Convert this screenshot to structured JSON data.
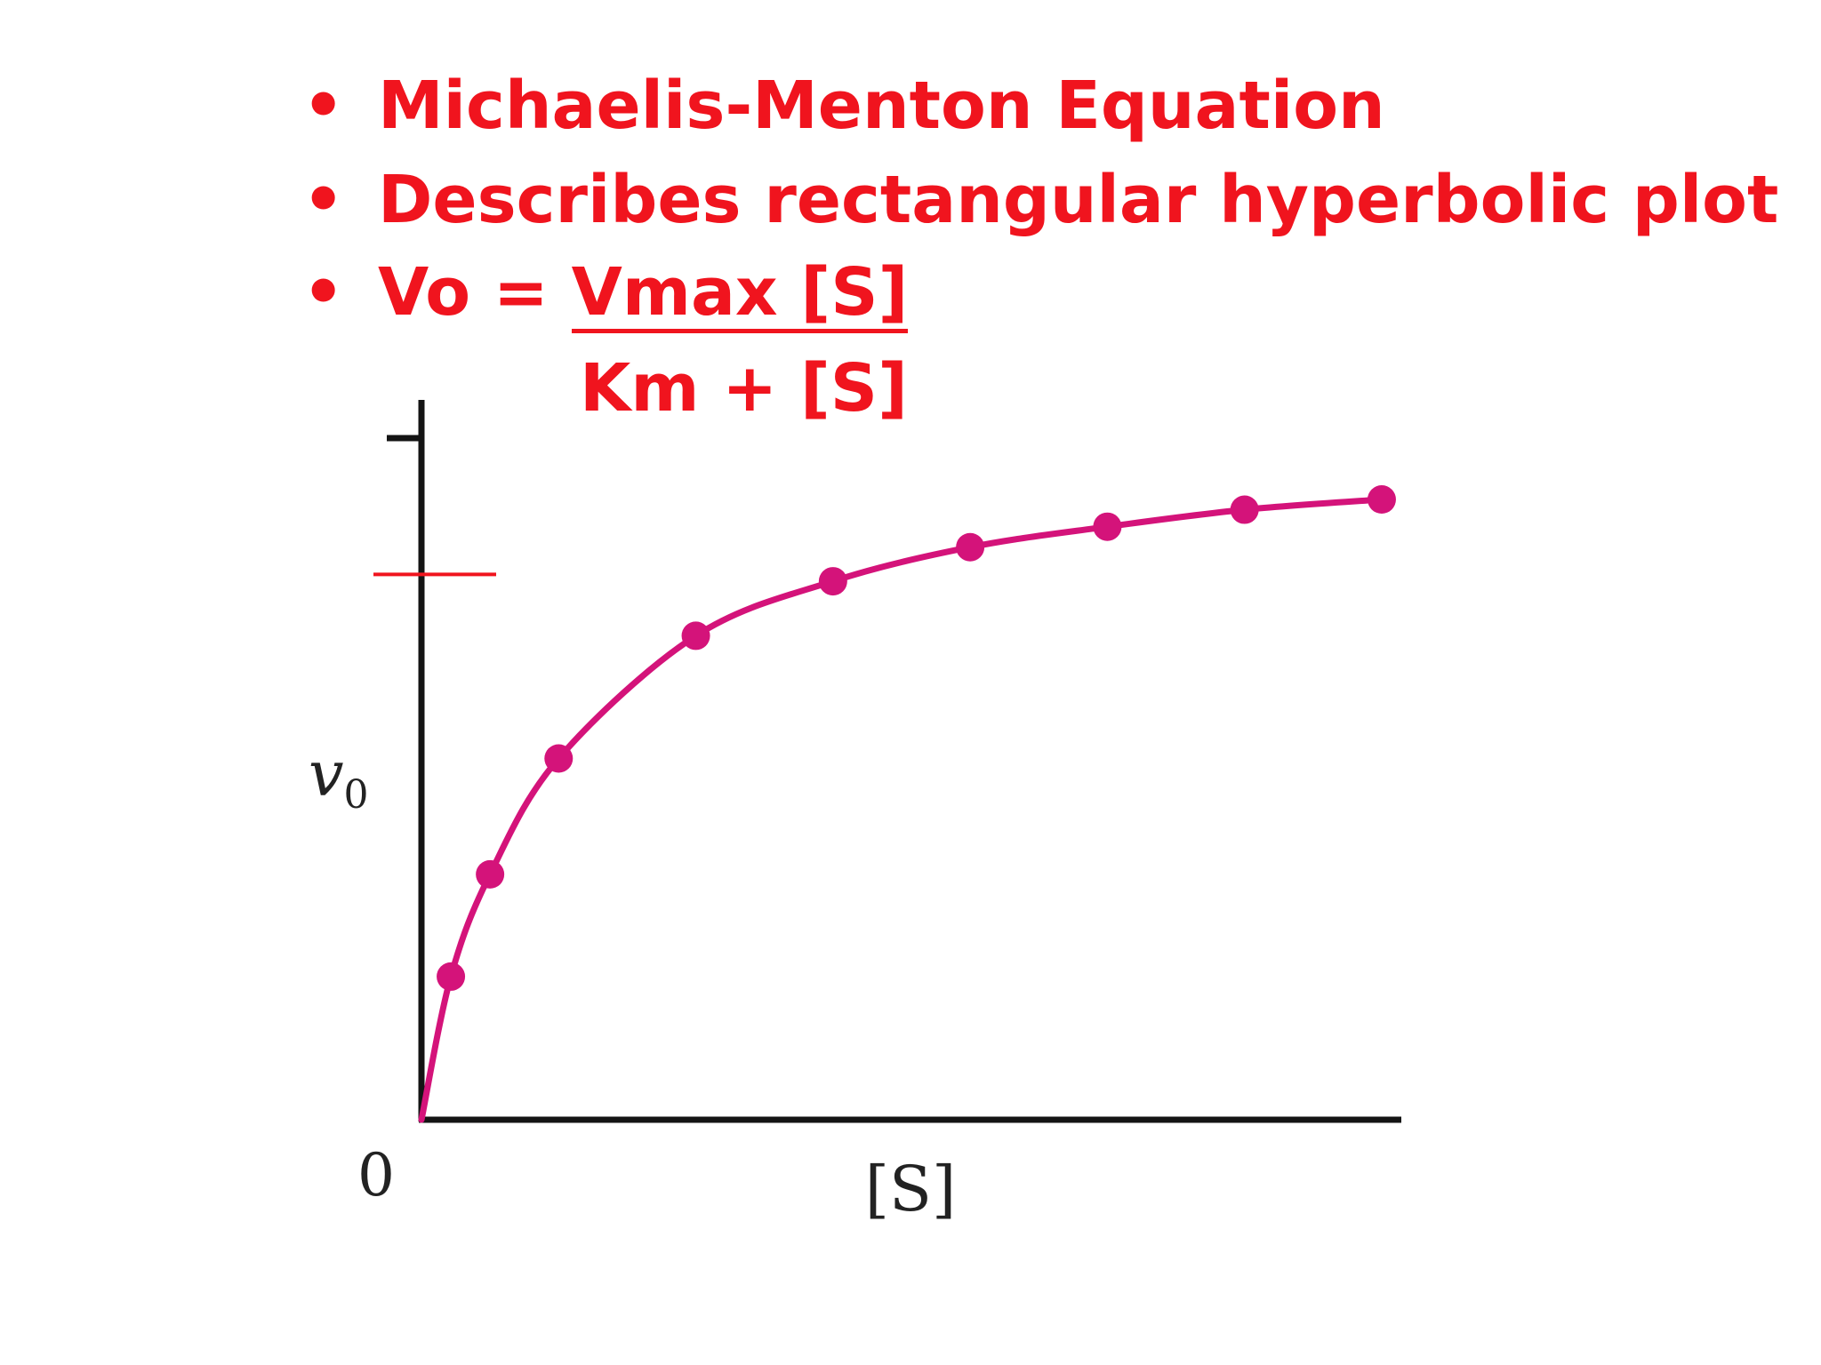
{
  "slide": {
    "bullets": [
      {
        "bullet": "•",
        "text": "Michaelis-Menton Equation"
      },
      {
        "bullet": "•",
        "text": "Describes rectangular hyperbolic plot"
      },
      {
        "bullet": "•",
        "lhs": "Vo = ",
        "numerator": "Vmax [S]",
        "denominator": "Km + [S]"
      }
    ]
  },
  "chart_data": {
    "type": "line",
    "xlabel": "[S]",
    "ylabel": "v",
    "ylabel_subscript": "0",
    "origin_label": "0",
    "xlim": [
      0,
      1
    ],
    "ylim": [
      0,
      1
    ],
    "grid": false,
    "markers": true,
    "series": [
      {
        "color": "#d4137a",
        "points": [
          {
            "x": 0.03,
            "y": 0.21
          },
          {
            "x": 0.07,
            "y": 0.36
          },
          {
            "x": 0.14,
            "y": 0.53
          },
          {
            "x": 0.28,
            "y": 0.71
          },
          {
            "x": 0.42,
            "y": 0.79
          },
          {
            "x": 0.56,
            "y": 0.84
          },
          {
            "x": 0.7,
            "y": 0.87
          },
          {
            "x": 0.84,
            "y": 0.895
          },
          {
            "x": 0.98,
            "y": 0.91
          }
        ]
      }
    ],
    "reference_line": {
      "y": 0.8,
      "color": "#f0141e"
    },
    "colors": {
      "axis": "#141414",
      "text": "#f0141e"
    }
  }
}
